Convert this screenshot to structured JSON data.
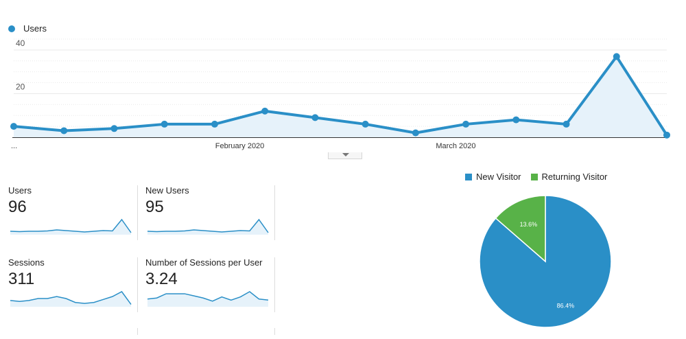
{
  "colors": {
    "primary": "#2a8fc7",
    "fill": "#e6f2fa",
    "grid": "#e9e9e9",
    "new_visitor": "#2a8fc7",
    "returning_visitor": "#58b248",
    "divider": "#dcdcdc"
  },
  "chart_data": [
    {
      "type": "line",
      "series": [
        {
          "name": "Users",
          "values": [
            5,
            3,
            4,
            6,
            6,
            12,
            9,
            6,
            2,
            6,
            8,
            6,
            37,
            1
          ]
        }
      ],
      "x_tick_labels": [
        "...",
        "February 2020",
        "March 2020"
      ],
      "y_ticks": [
        20,
        40
      ],
      "ylim": [
        0,
        45
      ],
      "grid": true,
      "legend": "top-left",
      "area_fill": true
    },
    {
      "type": "pie",
      "slices": [
        {
          "name": "New Visitor",
          "value": 86.4,
          "label": "86.4%"
        },
        {
          "name": "Returning Visitor",
          "value": 13.6,
          "label": "13.6%"
        }
      ],
      "legend": "top"
    }
  ],
  "metrics": [
    {
      "label": "Users",
      "value": "96",
      "sparkline": [
        3,
        2.5,
        3,
        3,
        3.5,
        5,
        4,
        3,
        2,
        3,
        4,
        3.5,
        20,
        1
      ]
    },
    {
      "label": "New Users",
      "value": "95",
      "sparkline": [
        3,
        2.5,
        3,
        3,
        3.5,
        5,
        4,
        3,
        2,
        3,
        4,
        3.5,
        20,
        1
      ]
    },
    {
      "label": "Sessions",
      "value": "311",
      "sparkline": [
        5,
        4,
        5,
        7,
        7,
        9,
        7,
        3,
        2,
        3,
        6,
        9,
        14,
        1
      ]
    },
    {
      "label": "Number of Sessions per User",
      "value": "3.24",
      "sparkline": [
        6,
        7,
        11,
        11,
        11,
        9,
        7,
        4,
        8,
        5,
        8,
        13,
        6,
        5
      ]
    }
  ]
}
